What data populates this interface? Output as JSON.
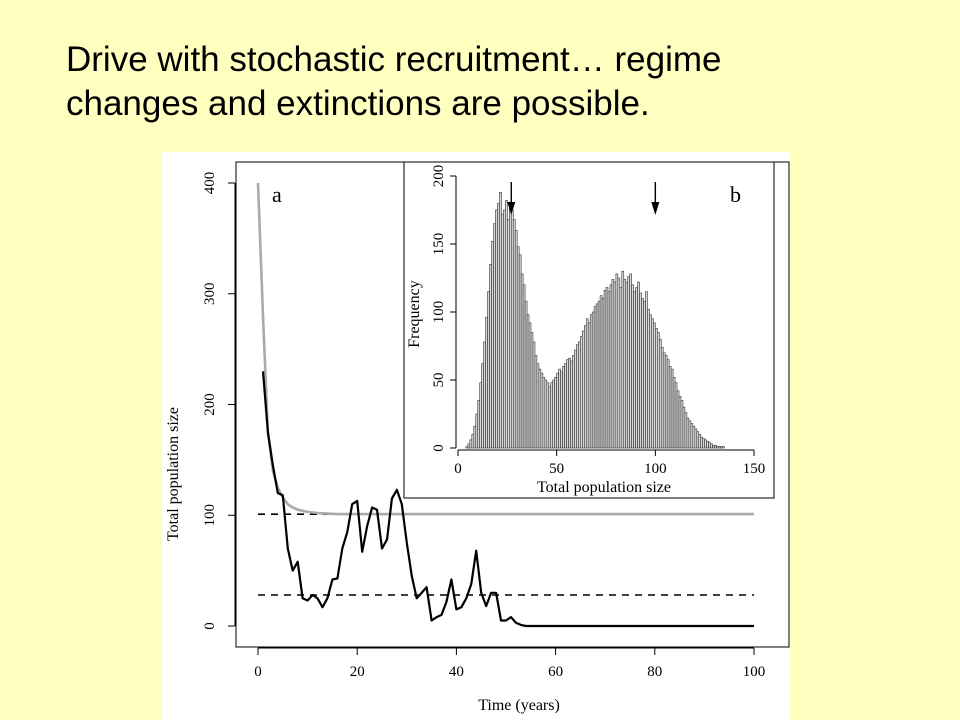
{
  "slide": {
    "title_line1": "Drive with stochastic recruitment… regime",
    "title_line2": "changes and extinctions are possible."
  },
  "chart_data": [
    {
      "type": "line",
      "panel_label": "a",
      "xlabel": "Time (years)",
      "ylabel": "Total population size",
      "xlim": [
        0,
        100
      ],
      "ylim": [
        0,
        400
      ],
      "xticks": [
        0,
        20,
        40,
        60,
        80,
        100
      ],
      "yticks": [
        0,
        100,
        200,
        300,
        400
      ],
      "grid": false,
      "series": [
        {
          "style": "deterministic",
          "color": "#aaaaaa",
          "x": [
            0,
            1,
            2,
            3,
            4,
            5,
            6,
            7,
            8,
            9,
            10,
            12,
            14,
            16,
            18,
            20,
            25,
            30,
            40,
            50,
            60,
            70,
            80,
            90,
            100
          ],
          "y": [
            400,
            280,
            175,
            140,
            125,
            116,
            110,
            107,
            105,
            104,
            103,
            102,
            101.5,
            101,
            101,
            101,
            101,
            101,
            101,
            101,
            101,
            101,
            101,
            101,
            101
          ]
        },
        {
          "style": "stochastic",
          "color": "#000000",
          "x": [
            1,
            2,
            3,
            4,
            5,
            6,
            7,
            8,
            9,
            10,
            11,
            12,
            13,
            14,
            15,
            16,
            17,
            18,
            19,
            20,
            21,
            22,
            23,
            24,
            25,
            26,
            27,
            28,
            29,
            30,
            31,
            32,
            33,
            34,
            35,
            36,
            37,
            38,
            39,
            40,
            41,
            42,
            43,
            44,
            45,
            46,
            47,
            48,
            49,
            50,
            51,
            52,
            53,
            54,
            55,
            56,
            60,
            70,
            80,
            90,
            100
          ],
          "y": [
            230,
            175,
            145,
            120,
            118,
            70,
            50,
            58,
            25,
            23,
            28,
            25,
            17,
            25,
            42,
            43,
            70,
            85,
            110,
            113,
            67,
            90,
            107,
            105,
            70,
            78,
            115,
            123,
            110,
            75,
            45,
            25,
            30,
            35,
            5,
            8,
            10,
            22,
            42,
            15,
            17,
            25,
            38,
            68,
            30,
            18,
            30,
            30,
            5,
            5,
            8,
            3,
            1,
            0,
            0,
            0,
            0,
            0,
            0,
            0,
            0
          ]
        }
      ],
      "reference_lines": [
        {
          "style": "dashed",
          "y": 101
        },
        {
          "style": "dashed",
          "y": 28
        }
      ]
    },
    {
      "type": "bar",
      "panel_label": "b",
      "xlabel": "Total population size",
      "ylabel": "Frequency",
      "xlim": [
        0,
        150
      ],
      "ylim": [
        0,
        200
      ],
      "xticks": [
        0,
        50,
        100,
        150
      ],
      "yticks": [
        0,
        50,
        100,
        150,
        200
      ],
      "bin_width": 1,
      "bins_start": 0,
      "values": [
        0,
        0,
        0,
        0,
        1,
        3,
        6,
        10,
        16,
        25,
        35,
        48,
        62,
        78,
        96,
        115,
        135,
        152,
        165,
        175,
        180,
        188,
        172,
        175,
        182,
        168,
        178,
        175,
        168,
        160,
        148,
        142,
        128,
        120,
        108,
        98,
        92,
        85,
        78,
        68,
        62,
        58,
        55,
        52,
        50,
        48,
        45,
        48,
        50,
        52,
        55,
        58,
        56,
        60,
        62,
        65,
        66,
        64,
        68,
        72,
        76,
        78,
        82,
        86,
        90,
        95,
        92,
        98,
        100,
        104,
        106,
        108,
        112,
        110,
        116,
        118,
        115,
        120,
        124,
        122,
        128,
        125,
        118,
        130,
        124,
        122,
        126,
        128,
        120,
        115,
        118,
        122,
        114,
        110,
        108,
        115,
        102,
        98,
        95,
        92,
        88,
        85,
        80,
        74,
        70,
        68,
        65,
        60,
        58,
        52,
        48,
        42,
        38,
        35,
        30,
        26,
        22,
        20,
        18,
        16,
        14,
        12,
        10,
        8,
        7,
        6,
        5,
        4,
        3,
        2,
        2,
        1,
        1,
        1,
        1,
        0,
        0,
        0,
        0,
        0,
        0,
        0,
        0,
        0,
        0,
        0,
        0,
        0,
        0,
        0
      ],
      "annotations": [
        {
          "type": "arrow",
          "x": 27,
          "direction": "down"
        },
        {
          "type": "arrow",
          "x": 100,
          "direction": "down"
        }
      ]
    }
  ]
}
